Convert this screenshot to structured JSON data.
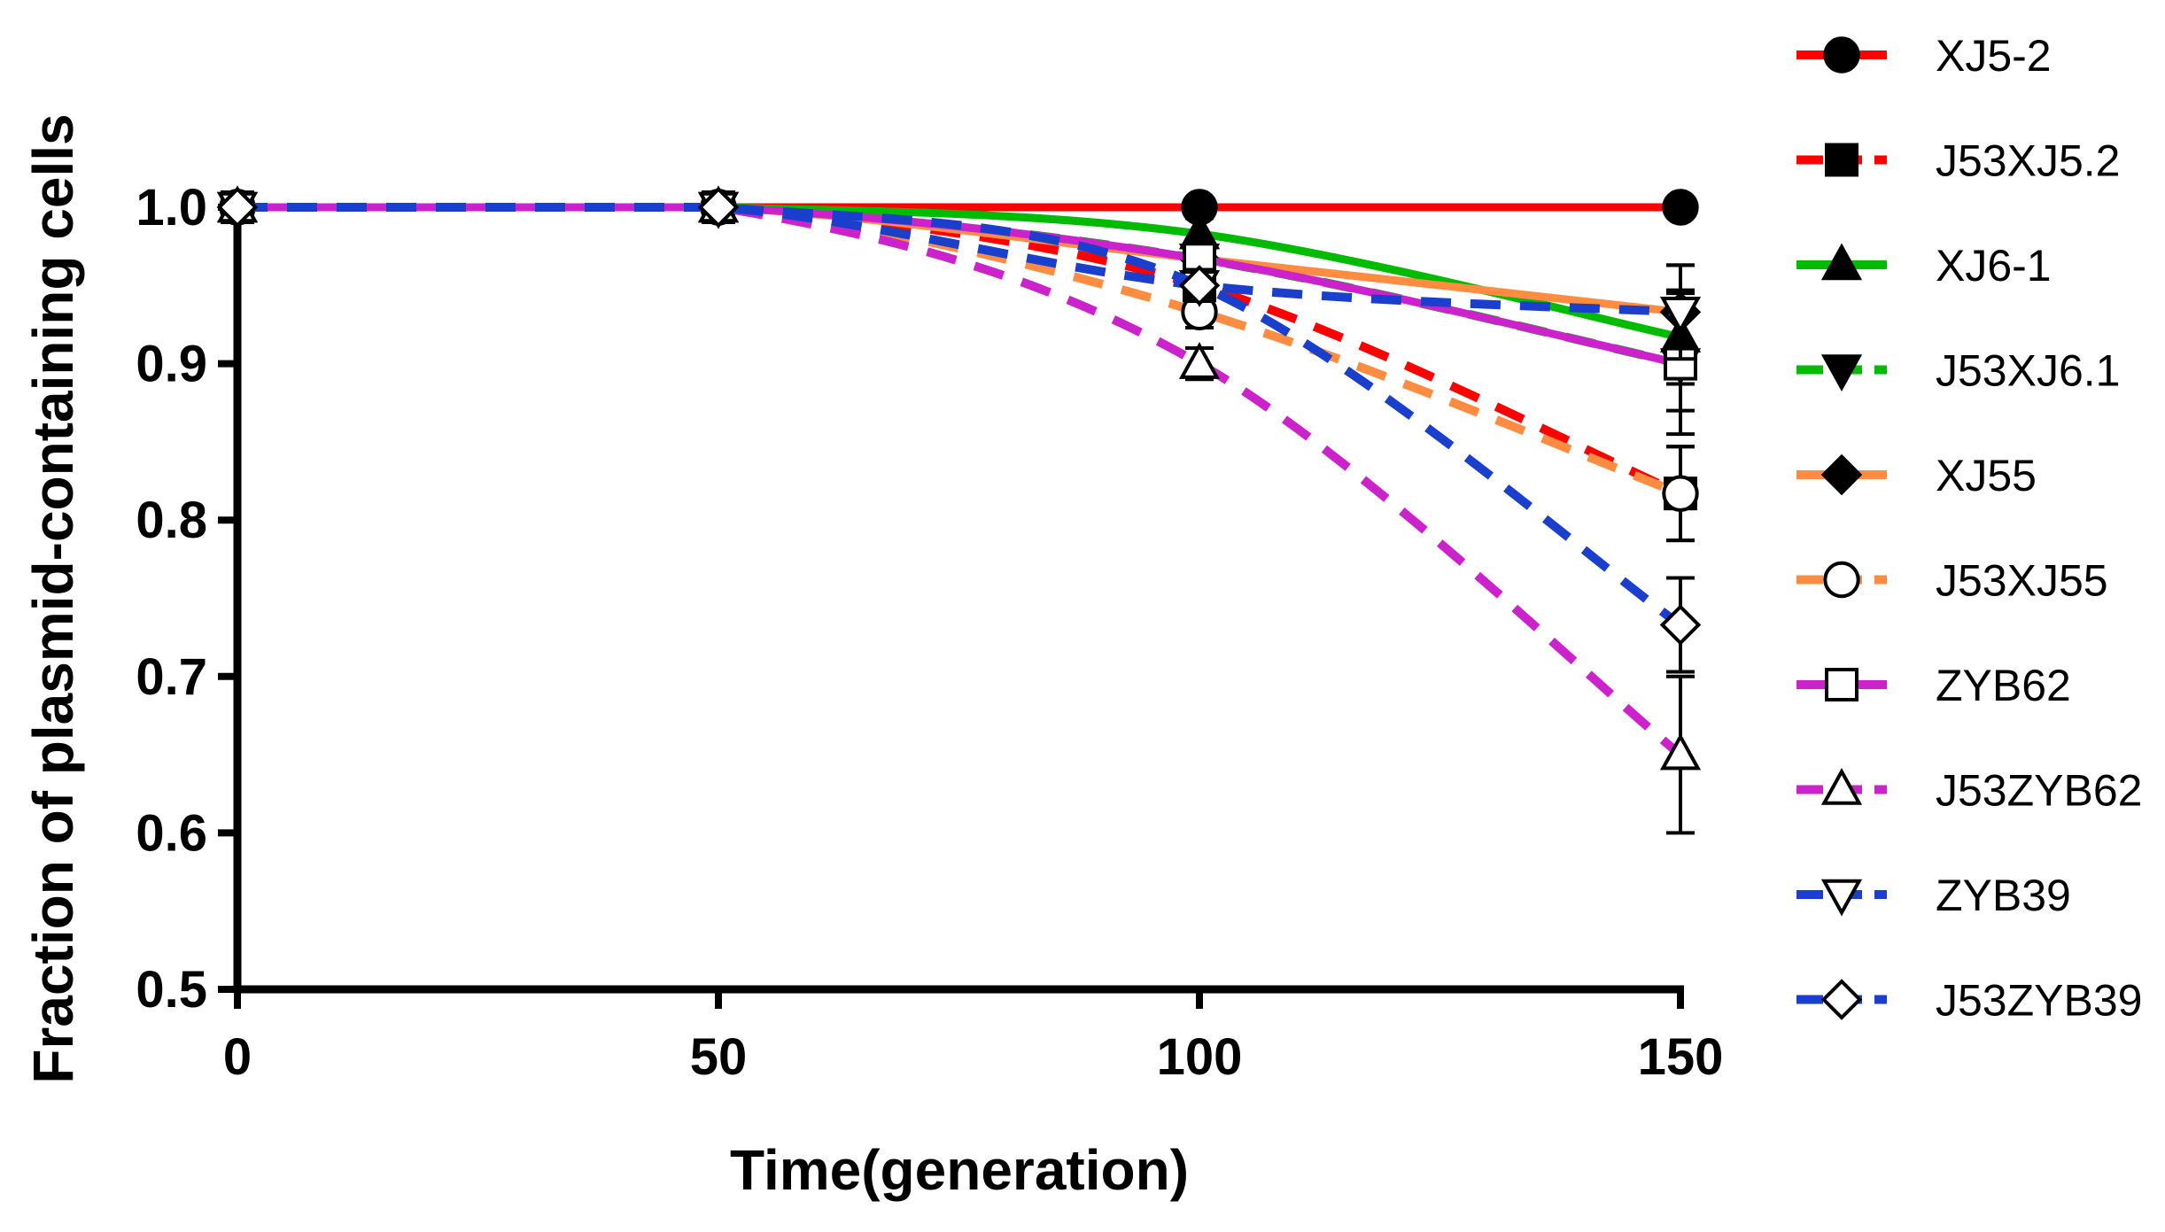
{
  "chart_data": {
    "type": "line",
    "title": "",
    "xlabel": "Time(generation)",
    "ylabel": "Fraction of plasmid-containing cells",
    "xlim": [
      0,
      150
    ],
    "ylim": [
      0.5,
      1.0
    ],
    "x": [
      0,
      50,
      100,
      150
    ],
    "xticks": [
      "0",
      "50",
      "100",
      "150"
    ],
    "yticks": [
      "0.5",
      "0.6",
      "0.7",
      "0.8",
      "0.9",
      "1.0"
    ],
    "grid": false,
    "legend": "right",
    "series": [
      {
        "name": "XJ5-2",
        "color": "#ff0000",
        "dash": "solid",
        "marker": "circle",
        "filled": true,
        "values": [
          1.0,
          1.0,
          1.0,
          1.0
        ],
        "errors": [
          0,
          0,
          0,
          0
        ]
      },
      {
        "name": "J53XJ5.2",
        "color": "#ff0000",
        "dash": "dashed",
        "marker": "square",
        "filled": true,
        "values": [
          1.0,
          1.0,
          0.95,
          0.817
        ],
        "errors": [
          0,
          0,
          0.01,
          0.03
        ]
      },
      {
        "name": "XJ6-1",
        "color": "#00bb00",
        "dash": "solid",
        "marker": "triangle-up",
        "filled": true,
        "values": [
          1.0,
          1.0,
          0.983,
          0.917
        ],
        "errors": [
          0,
          0,
          0.01,
          0.03
        ]
      },
      {
        "name": "J53XJ6.1",
        "color": "#00bb00",
        "dash": "dashed",
        "marker": "triangle-down",
        "filled": true,
        "values": [
          1.0,
          1.0,
          0.967,
          0.9
        ],
        "errors": [
          0,
          0,
          0.01,
          0.03
        ]
      },
      {
        "name": "XJ55",
        "color": "#ff8c40",
        "dash": "solid",
        "marker": "diamond",
        "filled": true,
        "values": [
          1.0,
          1.0,
          0.967,
          0.933
        ],
        "errors": [
          0,
          0,
          0.01,
          0.03
        ]
      },
      {
        "name": "J53XJ55",
        "color": "#ff8c40",
        "dash": "dashed",
        "marker": "circle",
        "filled": false,
        "values": [
          1.0,
          1.0,
          0.933,
          0.817
        ],
        "errors": [
          0,
          0,
          0.01,
          0.03
        ]
      },
      {
        "name": "ZYB62",
        "color": "#cc22cc",
        "dash": "solid",
        "marker": "square",
        "filled": false,
        "values": [
          1.0,
          1.0,
          0.967,
          0.9
        ],
        "errors": [
          0,
          0,
          0.01,
          0.045
        ]
      },
      {
        "name": "J53ZYB62",
        "color": "#cc22cc",
        "dash": "dashed",
        "marker": "triangle-up",
        "filled": false,
        "values": [
          1.0,
          1.0,
          0.9,
          0.65
        ],
        "errors": [
          0,
          0,
          0.01,
          0.05
        ]
      },
      {
        "name": "ZYB39",
        "color": "#1a3fcc",
        "dash": "dashed",
        "marker": "triangle-down",
        "filled": false,
        "values": [
          1.0,
          1.0,
          0.95,
          0.933
        ],
        "errors": [
          0,
          0,
          0.01,
          0.03
        ]
      },
      {
        "name": "J53ZYB39",
        "color": "#1a3fcc",
        "dash": "dashed",
        "marker": "diamond",
        "filled": false,
        "values": [
          1.0,
          1.0,
          0.95,
          0.733
        ],
        "errors": [
          0,
          0,
          0.01,
          0.03
        ]
      }
    ]
  }
}
